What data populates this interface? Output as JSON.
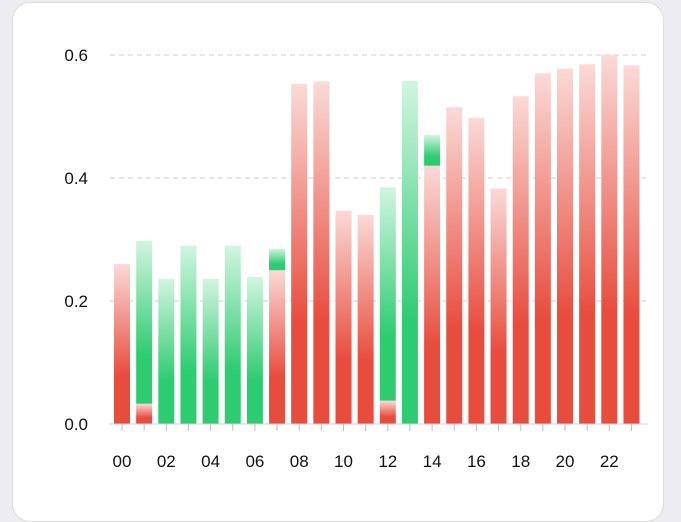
{
  "chart_data": {
    "type": "bar",
    "stacked": true,
    "title": "",
    "xlabel": "",
    "ylabel": "",
    "ylim": [
      0,
      0.6
    ],
    "y_ticks": [
      "0.0",
      "0.2",
      "0.4",
      "0.6"
    ],
    "categories": [
      "00",
      "01",
      "02",
      "03",
      "04",
      "05",
      "06",
      "07",
      "08",
      "09",
      "10",
      "11",
      "12",
      "13",
      "14",
      "15",
      "16",
      "17",
      "18",
      "19",
      "20",
      "21",
      "22",
      "23"
    ],
    "x_tick_labels": [
      "00",
      "02",
      "04",
      "06",
      "08",
      "10",
      "12",
      "14",
      "16",
      "18",
      "20",
      "22"
    ],
    "grid": true,
    "series": [
      {
        "color": "#e84c3d",
        "values": [
          0.26,
          0.033,
          0,
          0,
          0,
          0,
          0,
          0.25,
          0.553,
          0.557,
          0.347,
          0.34,
          0.038,
          0,
          0.42,
          0.515,
          0.498,
          0.383,
          0.533,
          0.57,
          0.578,
          0.585,
          0.6,
          0.583
        ]
      },
      {
        "color": "#2ecc71",
        "values": [
          0,
          0.265,
          0.236,
          0.29,
          0.236,
          0.29,
          0.239,
          0.035,
          0,
          0,
          0,
          0,
          0.347,
          0.558,
          0.05,
          0,
          0,
          0,
          0,
          0,
          0,
          0,
          0,
          0
        ]
      }
    ]
  }
}
